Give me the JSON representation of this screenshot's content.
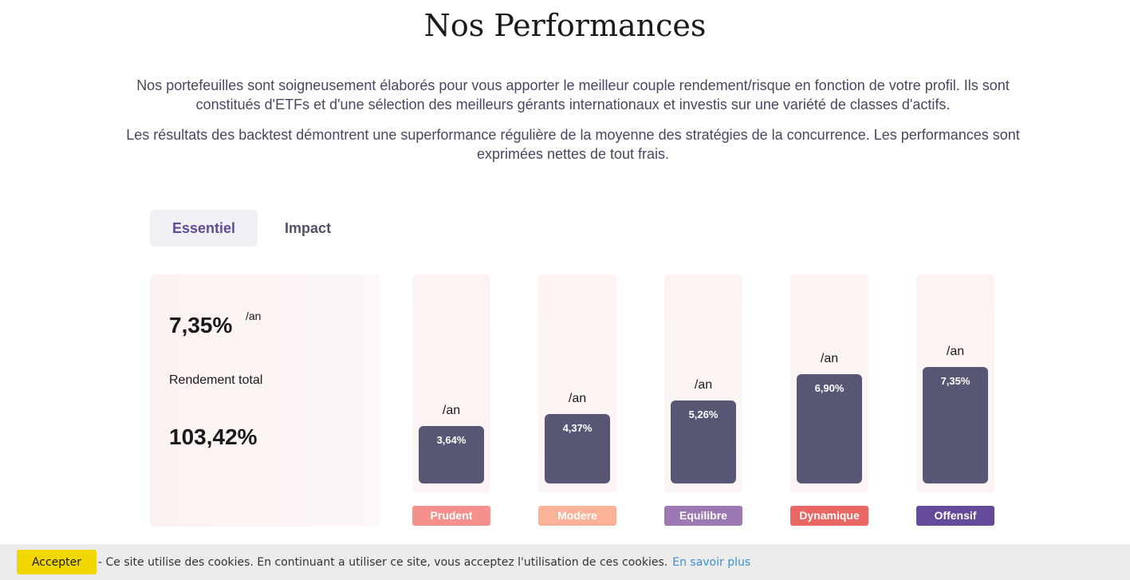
{
  "header": {
    "title": "Nos Performances"
  },
  "intro": {
    "paragraph_1": "Nos portefeuilles sont soigneusement élaborés pour vous apporter le meilleur couple rendement/risque en fonction de votre profil. Ils sont constitués d'ETFs et d'une sélection des meilleurs gérants internationaux et investis sur une variété de classes d'actifs.",
    "paragraph_2": "Les résultats des backtest démontrent une superformance régulière de la moyenne des stratégies de la concurrence. Les performances sont exprimées nettes de tout frais."
  },
  "tabs": [
    {
      "label": "Essentiel",
      "active": true
    },
    {
      "label": "Impact",
      "active": false
    }
  ],
  "summary": {
    "annual_rate": "7,35%",
    "unit": "/an",
    "total_label": "Rendement total",
    "total_value": "103,42%"
  },
  "chart_data": {
    "type": "bar",
    "categories": [
      "Prudent",
      "Modere",
      "Equilibre",
      "Dynamique",
      "Offensif"
    ],
    "values": [
      3.64,
      4.37,
      5.26,
      6.9,
      7.35
    ],
    "value_labels": [
      "3,64%",
      "4,37%",
      "5,26%",
      "6,90%",
      "7,35%"
    ],
    "unit_label": "/an",
    "bar_color": "#575675",
    "category_colors": [
      "#f6908c",
      "#fbb298",
      "#9c79b3",
      "#ea6662",
      "#634a9a"
    ]
  },
  "cookie_bar": {
    "accept_label": "Accepter",
    "message": "- Ce site utilise des cookies. En continuant a utiliser ce site, vous acceptez l'utilisation de ces cookies.",
    "link_label": "En savoir plus"
  }
}
